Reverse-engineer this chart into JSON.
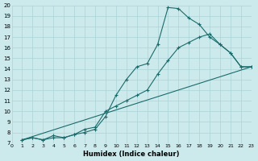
{
  "xlabel": "Humidex (Indice chaleur)",
  "bg_color": "#cce9ec",
  "grid_color": "#aad4d8",
  "line_color": "#1a6b6b",
  "xlim": [
    0,
    23
  ],
  "ylim": [
    7,
    20
  ],
  "xticks": [
    0,
    1,
    2,
    3,
    4,
    5,
    6,
    7,
    8,
    9,
    10,
    11,
    12,
    13,
    14,
    15,
    16,
    17,
    18,
    19,
    20,
    21,
    22,
    23
  ],
  "yticks": [
    7,
    8,
    9,
    10,
    11,
    12,
    13,
    14,
    15,
    16,
    17,
    18,
    19,
    20
  ],
  "line1_x": [
    1,
    2,
    3,
    4,
    5,
    6,
    7,
    8,
    9,
    10,
    11,
    12,
    13,
    14,
    15,
    16,
    17,
    18,
    19,
    20,
    21,
    22,
    23
  ],
  "line1_y": [
    7.3,
    7.5,
    7.3,
    7.7,
    7.5,
    7.8,
    8.0,
    8.3,
    9.5,
    11.5,
    13.0,
    14.2,
    14.5,
    16.3,
    19.8,
    19.7,
    18.8,
    18.2,
    17.0,
    16.3,
    15.5,
    14.2,
    14.2
  ],
  "line2_x": [
    1,
    2,
    3,
    4,
    5,
    6,
    7,
    8,
    9,
    10,
    11,
    12,
    13,
    14,
    15,
    16,
    17,
    18,
    19,
    20,
    21,
    22,
    23
  ],
  "line2_y": [
    7.3,
    7.5,
    7.3,
    7.5,
    7.5,
    7.8,
    8.3,
    8.5,
    10.0,
    10.5,
    11.0,
    11.5,
    12.0,
    13.5,
    14.8,
    16.0,
    16.5,
    17.0,
    17.3,
    16.3,
    15.5,
    14.2,
    14.2
  ],
  "line3_x": [
    1,
    23
  ],
  "line3_y": [
    7.3,
    14.2
  ]
}
